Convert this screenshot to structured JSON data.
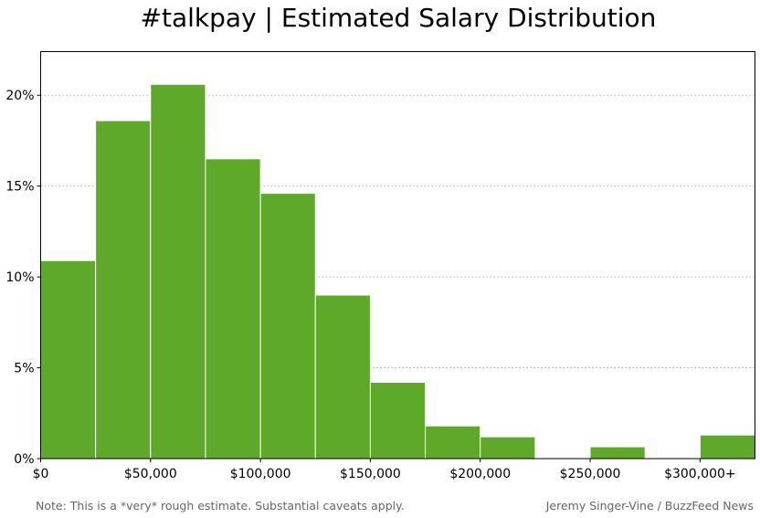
{
  "chart_data": {
    "type": "bar",
    "title": "#talkpay | Estimated Salary Distribution",
    "xlabel": "",
    "ylabel": "",
    "bin_width": 25000,
    "bins": [
      {
        "start": 0,
        "value": 10.9
      },
      {
        "start": 25000,
        "value": 18.6
      },
      {
        "start": 50000,
        "value": 20.6
      },
      {
        "start": 75000,
        "value": 16.5
      },
      {
        "start": 100000,
        "value": 14.6
      },
      {
        "start": 125000,
        "value": 9.0
      },
      {
        "start": 150000,
        "value": 4.2
      },
      {
        "start": 175000,
        "value": 1.8
      },
      {
        "start": 200000,
        "value": 1.2
      },
      {
        "start": 225000,
        "value": 0
      },
      {
        "start": 250000,
        "value": 0.65
      },
      {
        "start": 275000,
        "value": 0
      },
      {
        "start": 300000,
        "value": 1.3
      }
    ],
    "xlim": [
      0,
      325000
    ],
    "ylim": [
      0,
      22.4
    ],
    "xticks": [
      {
        "value": 0,
        "label": "$0"
      },
      {
        "value": 50000,
        "label": "$50,000"
      },
      {
        "value": 100000,
        "label": "$100,000"
      },
      {
        "value": 150000,
        "label": "$150,000"
      },
      {
        "value": 200000,
        "label": "$200,000"
      },
      {
        "value": 250000,
        "label": "$250,000"
      },
      {
        "value": 300000,
        "label": "$300,000+"
      }
    ],
    "yticks": [
      {
        "value": 0,
        "label": "0%"
      },
      {
        "value": 5,
        "label": "5%"
      },
      {
        "value": 10,
        "label": "10%"
      },
      {
        "value": 15,
        "label": "15%"
      },
      {
        "value": 20,
        "label": "20%"
      }
    ],
    "grid": "y-dotted",
    "colors": {
      "bar": "#5ea82a",
      "bar_edge": "#ffffff",
      "grid": "#b0b0b0",
      "footer": "#666666"
    }
  },
  "footer": {
    "note": "Note: This is a *very* rough estimate. Substantial caveats apply.",
    "credit": "Jeremy Singer-Vine / BuzzFeed News"
  }
}
